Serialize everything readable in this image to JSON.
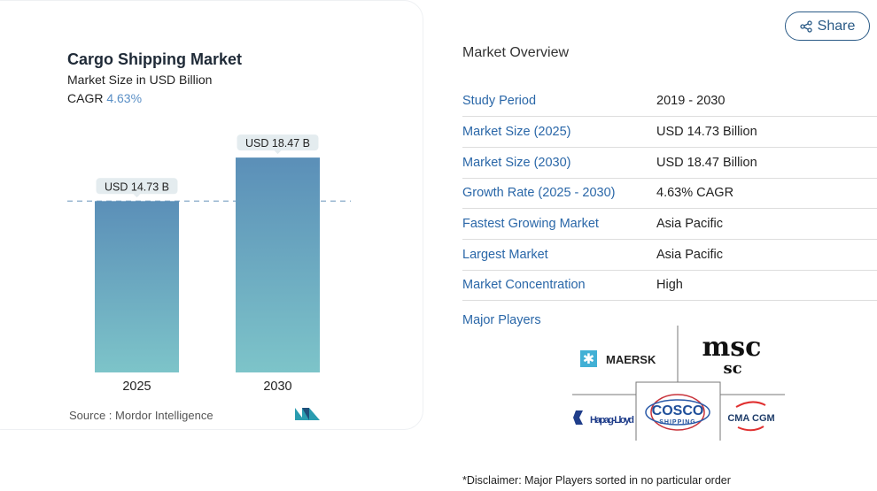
{
  "card": {
    "title": "Cargo Shipping Market",
    "subtitle": "Market Size in USD Billion",
    "cagr_label": "CAGR",
    "cagr_value": "4.63%",
    "source": "Source :  Mordor Intelligence"
  },
  "chart_data": {
    "type": "bar",
    "title": "Cargo Shipping Market",
    "ylabel": "Market Size in USD Billion",
    "categories": [
      "2025",
      "2030"
    ],
    "values": [
      14.73,
      18.47
    ],
    "data_labels": [
      "USD 14.73 B",
      "USD 18.47 B"
    ],
    "ylim": [
      0,
      20
    ],
    "reference_line": 14.73,
    "colors": [
      "#5b8fb8",
      "#7dc4c9"
    ]
  },
  "share_label": "Share",
  "overview": {
    "title": "Market Overview",
    "rows": [
      {
        "k": "Study Period",
        "v": "2019 - 2030"
      },
      {
        "k": "Market Size (2025)",
        "v": "USD 14.73 Billion"
      },
      {
        "k": "Market Size (2030)",
        "v": "USD 18.47 Billion"
      },
      {
        "k": "Growth Rate (2025 - 2030)",
        "v": "4.63% CAGR"
      },
      {
        "k": "Fastest Growing Market",
        "v": "Asia Pacific"
      },
      {
        "k": "Largest Market",
        "v": "Asia Pacific"
      },
      {
        "k": "Market Concentration",
        "v": "High"
      }
    ],
    "major_players_label": "Major Players",
    "players": [
      "MAERSK",
      "msc",
      "Hapag-Lloyd",
      "COSCO",
      "SHIPPING",
      "CMA CGM"
    ],
    "disclaimer": "*Disclaimer: Major Players sorted in no particular order"
  }
}
